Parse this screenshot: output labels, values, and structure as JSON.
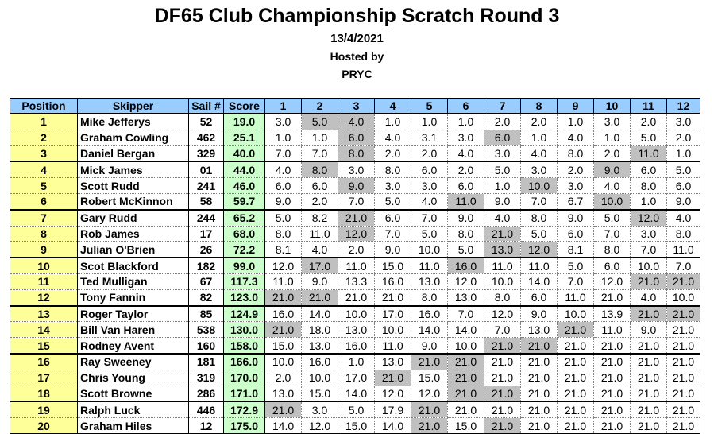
{
  "header": {
    "title": "DF65 Club Championship Scratch  Round 3",
    "date": "13/4/2021",
    "hosted_by": "Hosted by",
    "club": "PRYC"
  },
  "table": {
    "columns": [
      "Position",
      "Skipper",
      "Sail #",
      "Score",
      "1",
      "2",
      "3",
      "4",
      "5",
      "6",
      "7",
      "8",
      "9",
      "10",
      "11",
      "12"
    ],
    "rows": [
      {
        "pos": "1",
        "skipper": "Mike Jefferys",
        "sail": "52",
        "score": "19.0",
        "races": [
          "3.0",
          "5.0",
          "4.0",
          "1.0",
          "1.0",
          "1.0",
          "2.0",
          "2.0",
          "1.0",
          "3.0",
          "2.0",
          "3.0"
        ],
        "discards": [
          1,
          2
        ]
      },
      {
        "pos": "2",
        "skipper": "Graham Cowling",
        "sail": "462",
        "score": "25.1",
        "races": [
          "1.0",
          "1.0",
          "6.0",
          "4.0",
          "3.1",
          "3.0",
          "6.0",
          "1.0",
          "4.0",
          "1.0",
          "5.0",
          "2.0"
        ],
        "discards": [
          2,
          6
        ]
      },
      {
        "pos": "3",
        "skipper": "Daniel Bergan",
        "sail": "329",
        "score": "40.0",
        "races": [
          "7.0",
          "7.0",
          "8.0",
          "2.0",
          "2.0",
          "4.0",
          "3.0",
          "4.0",
          "8.0",
          "2.0",
          "11.0",
          "1.0"
        ],
        "discards": [
          2,
          10
        ]
      },
      {
        "pos": "4",
        "skipper": "Mick James",
        "sail": "01",
        "score": "44.0",
        "races": [
          "4.0",
          "8.0",
          "3.0",
          "8.0",
          "6.0",
          "2.0",
          "5.0",
          "3.0",
          "2.0",
          "9.0",
          "6.0",
          "5.0"
        ],
        "discards": [
          1,
          9
        ]
      },
      {
        "pos": "5",
        "skipper": "Scott Rudd",
        "sail": "241",
        "score": "46.0",
        "races": [
          "6.0",
          "6.0",
          "9.0",
          "3.0",
          "3.0",
          "6.0",
          "1.0",
          "10.0",
          "3.0",
          "4.0",
          "8.0",
          "6.0"
        ],
        "discards": [
          2,
          7
        ]
      },
      {
        "pos": "6",
        "skipper": "Robert McKinnon",
        "sail": "58",
        "score": "59.7",
        "races": [
          "9.0",
          "2.0",
          "7.0",
          "5.0",
          "4.0",
          "11.0",
          "9.0",
          "7.0",
          "6.7",
          "10.0",
          "1.0",
          "9.0"
        ],
        "discards": [
          5,
          9
        ]
      },
      {
        "pos": "7",
        "skipper": "Gary Rudd",
        "sail": "244",
        "score": "65.2",
        "races": [
          "5.0",
          "8.2",
          "21.0",
          "6.0",
          "7.0",
          "9.0",
          "4.0",
          "8.0",
          "9.0",
          "5.0",
          "12.0",
          "4.0"
        ],
        "discards": [
          2,
          10
        ]
      },
      {
        "pos": "8",
        "skipper": "Rob James",
        "sail": "17",
        "score": "68.0",
        "races": [
          "8.0",
          "11.0",
          "12.0",
          "7.0",
          "5.0",
          "8.0",
          "21.0",
          "5.0",
          "6.0",
          "7.0",
          "3.0",
          "8.0"
        ],
        "discards": [
          2,
          6
        ]
      },
      {
        "pos": "9",
        "skipper": "Julian O'Brien",
        "sail": "26",
        "score": "72.2",
        "races": [
          "8.1",
          "4.0",
          "2.0",
          "9.0",
          "10.0",
          "5.0",
          "13.0",
          "12.0",
          "8.1",
          "8.0",
          "7.0",
          "11.0"
        ],
        "discards": [
          6,
          7
        ]
      },
      {
        "pos": "10",
        "skipper": "Scot Blackford",
        "sail": "182",
        "score": "99.0",
        "races": [
          "12.0",
          "17.0",
          "11.0",
          "15.0",
          "11.0",
          "16.0",
          "11.0",
          "11.0",
          "5.0",
          "6.0",
          "10.0",
          "7.0"
        ],
        "discards": [
          1,
          5
        ]
      },
      {
        "pos": "11",
        "skipper": "Ted Mulligan",
        "sail": "67",
        "score": "117.3",
        "races": [
          "11.0",
          "9.0",
          "13.3",
          "16.0",
          "13.0",
          "12.0",
          "10.0",
          "14.0",
          "7.0",
          "12.0",
          "21.0",
          "21.0"
        ],
        "discards": [
          10,
          11
        ]
      },
      {
        "pos": "12",
        "skipper": "Tony Fannin",
        "sail": "82",
        "score": "123.0",
        "races": [
          "21.0",
          "21.0",
          "21.0",
          "21.0",
          "8.0",
          "13.0",
          "8.0",
          "6.0",
          "11.0",
          "21.0",
          "4.0",
          "10.0"
        ],
        "discards": [
          0,
          1
        ]
      },
      {
        "pos": "13",
        "skipper": "Roger Taylor",
        "sail": "85",
        "score": "124.9",
        "races": [
          "16.0",
          "14.0",
          "10.0",
          "17.0",
          "16.0",
          "7.0",
          "12.0",
          "9.0",
          "10.0",
          "13.9",
          "21.0",
          "21.0"
        ],
        "discards": [
          10,
          11
        ]
      },
      {
        "pos": "14",
        "skipper": "Bill Van Haren",
        "sail": "538",
        "score": "130.0",
        "races": [
          "21.0",
          "18.0",
          "13.0",
          "10.0",
          "14.0",
          "14.0",
          "7.0",
          "13.0",
          "21.0",
          "11.0",
          "9.0",
          "21.0"
        ],
        "discards": [
          0,
          8
        ]
      },
      {
        "pos": "15",
        "skipper": "Rodney Avent",
        "sail": "160",
        "score": "158.0",
        "races": [
          "15.0",
          "13.0",
          "16.0",
          "11.0",
          "9.0",
          "10.0",
          "21.0",
          "21.0",
          "21.0",
          "21.0",
          "21.0",
          "21.0"
        ],
        "discards": [
          6,
          7
        ]
      },
      {
        "pos": "16",
        "skipper": "Ray Sweeney",
        "sail": "181",
        "score": "166.0",
        "races": [
          "10.0",
          "16.0",
          "1.0",
          "13.0",
          "21.0",
          "21.0",
          "21.0",
          "21.0",
          "21.0",
          "21.0",
          "21.0",
          "21.0"
        ],
        "discards": [
          4,
          5
        ]
      },
      {
        "pos": "17",
        "skipper": "Chris Young",
        "sail": "319",
        "score": "170.0",
        "races": [
          "2.0",
          "10.0",
          "17.0",
          "21.0",
          "15.0",
          "21.0",
          "21.0",
          "21.0",
          "21.0",
          "21.0",
          "21.0",
          "21.0"
        ],
        "discards": [
          3,
          5
        ]
      },
      {
        "pos": "18",
        "skipper": "Scott Browne",
        "sail": "286",
        "score": "171.0",
        "races": [
          "13.0",
          "15.0",
          "14.0",
          "12.0",
          "12.0",
          "21.0",
          "21.0",
          "21.0",
          "21.0",
          "21.0",
          "21.0",
          "21.0"
        ],
        "discards": [
          5,
          6
        ]
      },
      {
        "pos": "19",
        "skipper": "Ralph Luck",
        "sail": "446",
        "score": "172.9",
        "races": [
          "21.0",
          "3.0",
          "5.0",
          "17.9",
          "21.0",
          "21.0",
          "21.0",
          "21.0",
          "21.0",
          "21.0",
          "21.0",
          "21.0"
        ],
        "discards": [
          0,
          4
        ]
      },
      {
        "pos": "20",
        "skipper": "Graham Hiles",
        "sail": "12",
        "score": "175.0",
        "races": [
          "14.0",
          "12.0",
          "15.0",
          "14.0",
          "21.0",
          "15.0",
          "21.0",
          "21.0",
          "21.0",
          "21.0",
          "21.0",
          "21.0"
        ],
        "discards": [
          4,
          6
        ]
      }
    ],
    "group_starts": [
      0,
      3,
      6,
      9,
      12,
      15,
      18
    ]
  },
  "colors": {
    "header_bg": "#99ccff",
    "position_bg": "#ffff99",
    "score_bg": "#ccffcc",
    "discard_bg": "#c0c0c0"
  }
}
